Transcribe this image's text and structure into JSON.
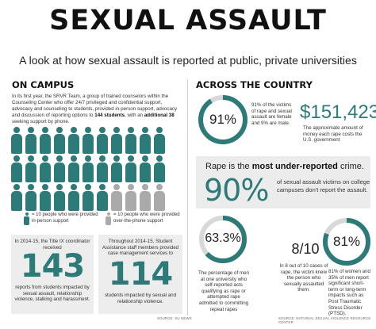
{
  "header": {
    "title": "SEXUAL ASSAULT",
    "subtitle": "A look at how sexual assault is reported at public, private universities"
  },
  "on_campus": {
    "heading": "ON CAMPUS",
    "intro_text": "In its first year, the SRVR Team, a group of trained counselors within the Counseling Center who offer 24/7 privileged and confidential support, advocacy and counseling to students, provided in-person support, advocacy and discussion of reporting options to",
    "intro_students": "144 students",
    "intro_mid": ", with an",
    "intro_additional": "additional 38",
    "intro_end": "seeking support by phone.",
    "icon_rows": [
      {
        "teal": 11,
        "gray": 0
      },
      {
        "teal": 11,
        "gray": 0
      },
      {
        "teal": 7,
        "gray": 4
      }
    ],
    "legend_inperson": "= 10 people who were provided in-person support",
    "legend_phone": "= 10 people who were provided over-the-phone support",
    "title_ix_desc": "In 2014-15, the Title IX coordinator received",
    "title_ix_number": "143",
    "title_ix_sub": "reports from students impacted by sexual assault, relationship violence, stalking and harassment.",
    "sasm_desc": "Throughout 2014-15, Student Assistance staff members provided case management services to",
    "sasm_number": "114",
    "sasm_sub": "students impacted by sexual and relationship violence.",
    "credit": "SOURCE: SU NEWS"
  },
  "across_country": {
    "heading": "ACROSS THE COUNTRY",
    "stat1_percent": "91%",
    "stat1_value": 91,
    "stat1_text": "91% of the victims of rape and sexual assault are female and 9% are male.",
    "cost": "$151,423",
    "cost_text": "The approximate amount of money each rape costs the U.S. government",
    "underreported_pre": "Rape is the",
    "underreported_bold": "most under-reported",
    "underreported_post": "crime.",
    "stat2_percent": "90%",
    "stat2_text": "of sexual assault victims on college campuses don't report the assault.",
    "stat3_percent": "63.3%",
    "stat3_value": 63.3,
    "stat3_text": "The percentage of men at one university who self-reported acts qualifying as rape or attempted rape admitted to committing repeat rapes",
    "stat4_fraction": "8/10",
    "stat4_text": "In 8 out of 10 cases of rape, the victim knew the person who sexually assaulted them.",
    "stat5_percent": "81%",
    "stat5_value": 81,
    "stat5_text": "81% of women and 35% of men report significant short-term or long-term impacts such as Post Traumatic Stress Disorder (PTSD).",
    "credit": "SOURCE: NATIONAL SEXUAL VIOLENCE RESOURCE CENTER"
  },
  "colors": {
    "accent": "#2d7b78",
    "secondary": "#aaaaaa",
    "panel": "#ededed"
  }
}
